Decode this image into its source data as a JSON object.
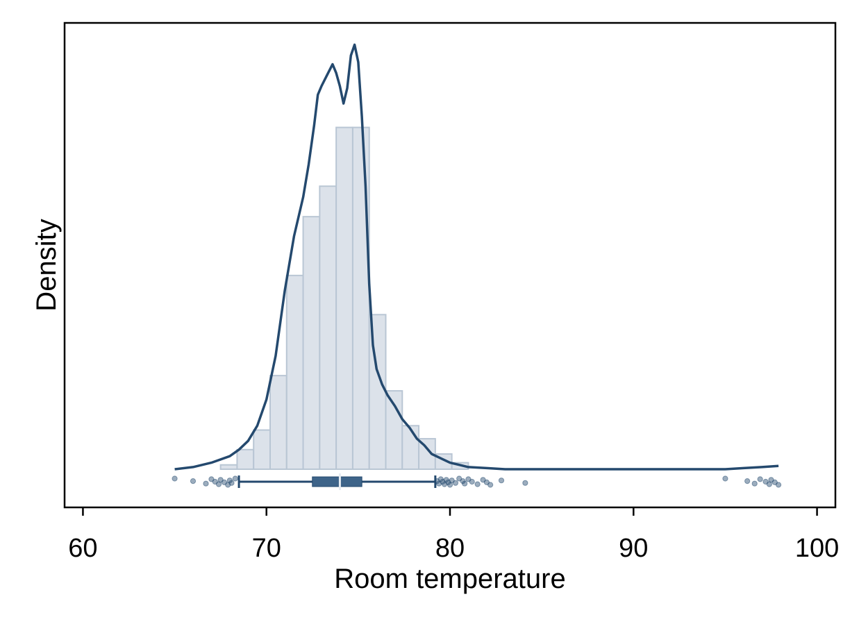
{
  "chart_data": {
    "type": "histogram",
    "title": "",
    "xlabel": "Room temperature",
    "ylabel": "Density",
    "xlim": [
      59,
      101
    ],
    "ylim": [
      0,
      0.205
    ],
    "xticks": [
      60,
      70,
      80,
      90,
      100
    ],
    "tick_labels": [
      "60",
      "70",
      "80",
      "90",
      "100"
    ],
    "grid": false,
    "legend": "none",
    "colors": {
      "bar_fill": "#dce2ea",
      "bar_edge": "#b9c6d4",
      "density_line": "#24496e",
      "box": "#3e6489",
      "points": "#24496e"
    },
    "bins": [
      {
        "x0": 67.5,
        "x1": 68.4,
        "value": 0.002
      },
      {
        "x0": 68.4,
        "x1": 69.3,
        "value": 0.009
      },
      {
        "x0": 69.3,
        "x1": 70.2,
        "value": 0.018
      },
      {
        "x0": 70.2,
        "x1": 71.1,
        "value": 0.043
      },
      {
        "x0": 71.1,
        "x1": 72.0,
        "value": 0.089
      },
      {
        "x0": 72.0,
        "x1": 72.9,
        "value": 0.116
      },
      {
        "x0": 72.9,
        "x1": 73.8,
        "value": 0.13
      },
      {
        "x0": 73.8,
        "x1": 74.7,
        "value": 0.157
      },
      {
        "x0": 74.7,
        "x1": 75.6,
        "value": 0.157
      },
      {
        "x0": 75.6,
        "x1": 76.5,
        "value": 0.071
      },
      {
        "x0": 76.5,
        "x1": 77.4,
        "value": 0.036
      },
      {
        "x0": 77.4,
        "x1": 78.3,
        "value": 0.02
      },
      {
        "x0": 78.3,
        "x1": 79.2,
        "value": 0.014
      },
      {
        "x0": 79.2,
        "x1": 80.1,
        "value": 0.007
      },
      {
        "x0": 80.1,
        "x1": 81.0,
        "value": 0.003
      }
    ],
    "density_curve": {
      "x": [
        65.0,
        66.0,
        67.0,
        68.0,
        68.5,
        69.0,
        69.5,
        70.0,
        70.5,
        71.0,
        71.5,
        72.0,
        72.3,
        72.6,
        72.8,
        73.0,
        73.3,
        73.6,
        73.8,
        74.0,
        74.2,
        74.4,
        74.6,
        74.8,
        75.0,
        75.2,
        75.4,
        75.6,
        75.8,
        76.0,
        76.3,
        76.6,
        77.0,
        77.4,
        77.8,
        78.2,
        78.6,
        79.0,
        79.5,
        80.0,
        80.5,
        81.0,
        82.0,
        83.0,
        85.0,
        90.0,
        95.0,
        96.0,
        97.0,
        97.9
      ],
      "y": [
        0.0,
        0.001,
        0.003,
        0.006,
        0.009,
        0.013,
        0.02,
        0.032,
        0.052,
        0.082,
        0.107,
        0.125,
        0.14,
        0.158,
        0.172,
        0.176,
        0.181,
        0.186,
        0.182,
        0.176,
        0.168,
        0.175,
        0.19,
        0.195,
        0.187,
        0.162,
        0.13,
        0.085,
        0.057,
        0.046,
        0.039,
        0.034,
        0.029,
        0.023,
        0.019,
        0.014,
        0.011,
        0.007,
        0.005,
        0.003,
        0.002,
        0.001,
        0.0005,
        0.0,
        0.0,
        0.0,
        0.0,
        0.0005,
        0.001,
        0.0015
      ]
    },
    "boxplot": {
      "whisker_low": 68.5,
      "q1": 72.5,
      "median": 74.0,
      "q3": 75.2,
      "whisker_high": 79.2
    },
    "outliers": [
      65.0,
      66.0,
      66.7,
      67.0,
      67.2,
      67.4,
      67.5,
      67.7,
      67.9,
      68.0,
      68.1,
      68.3,
      79.3,
      79.4,
      79.5,
      79.6,
      79.7,
      79.8,
      79.9,
      80.0,
      80.1,
      80.3,
      80.5,
      80.7,
      80.8,
      81.0,
      81.2,
      81.5,
      81.8,
      82.0,
      82.2,
      82.8,
      84.1,
      95.0,
      96.2,
      96.6,
      96.9,
      97.2,
      97.4,
      97.5,
      97.7,
      97.9
    ]
  }
}
